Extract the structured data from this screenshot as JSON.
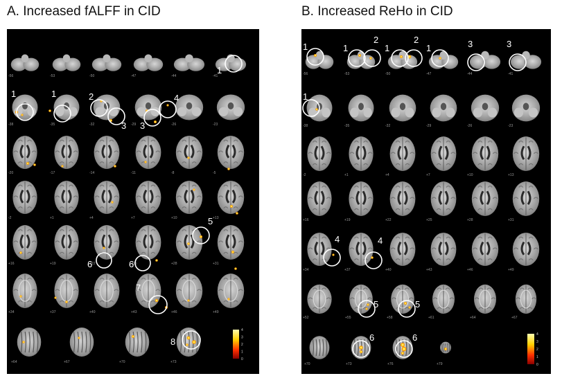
{
  "panel_a": {
    "title": "A.  Increased fALFF in CID",
    "rows": [
      {
        "kind": "cerebellum",
        "slices": [
          "-56",
          "-53",
          "-50",
          "-47",
          "-44",
          "-41"
        ]
      },
      {
        "kind": "inferior",
        "slices": [
          "-38",
          "-35",
          "-32",
          "-29",
          "-26",
          "-23"
        ]
      },
      {
        "kind": "axial",
        "slices": [
          "-20",
          "-17",
          "-14",
          "-11",
          "-8",
          "-5"
        ]
      },
      {
        "kind": "axial",
        "slices": [
          "-2",
          "+1",
          "+4",
          "+7",
          "+10",
          "+13"
        ]
      },
      {
        "kind": "ventricle",
        "slices": [
          "+16",
          "+19",
          "+22",
          "+25",
          "+28",
          "+31"
        ]
      },
      {
        "kind": "superior",
        "slices": [
          "+34",
          "+37",
          "+40",
          "+43",
          "+46",
          "+49"
        ]
      },
      {
        "kind": "vertex",
        "slices": [
          "+64",
          "+67",
          "+70",
          "+73"
        ]
      }
    ],
    "annotations": [
      "1",
      "1",
      "1",
      "2",
      "3",
      "3",
      "4",
      "5",
      "6",
      "6",
      "7",
      "8"
    ],
    "colorbar": {
      "ticks": [
        "4",
        "3",
        "2",
        "1",
        "0"
      ],
      "top_color": "#ffffa0",
      "bottom_color": "#c00000"
    }
  },
  "panel_b": {
    "title": "B.  Increased ReHo in CID",
    "rows": [
      {
        "kind": "cerebellum",
        "slices": [
          "-56",
          "-53",
          "-50",
          "-47",
          "-44",
          "-41"
        ]
      },
      {
        "kind": "inferior",
        "slices": [
          "-38",
          "-35",
          "-32",
          "-29",
          "-26",
          "-23"
        ]
      },
      {
        "kind": "axial",
        "slices": [
          "-2",
          "+1",
          "+4",
          "+7",
          "+10",
          "+13"
        ]
      },
      {
        "kind": "axial",
        "slices": [
          "+16",
          "+19",
          "+22",
          "+25",
          "+28",
          "+31"
        ]
      },
      {
        "kind": "ventricle",
        "slices": [
          "+34",
          "+37",
          "+40",
          "+43",
          "+46",
          "+49"
        ]
      },
      {
        "kind": "superior",
        "slices": [
          "+52",
          "+55",
          "+58",
          "+61",
          "+64",
          "+67"
        ]
      },
      {
        "kind": "vertex",
        "slices": [
          "+70",
          "+73",
          "+76",
          "+79"
        ]
      }
    ],
    "annotations": [
      "1",
      "1",
      "1",
      "1",
      "1",
      "2",
      "2",
      "3",
      "3",
      "4",
      "4",
      "5",
      "5",
      "6",
      "6"
    ],
    "colorbar": {
      "ticks": [
        "4",
        "3",
        "2",
        "1",
        "0"
      ],
      "top_color": "#ffffa0",
      "bottom_color": "#c00000"
    }
  }
}
